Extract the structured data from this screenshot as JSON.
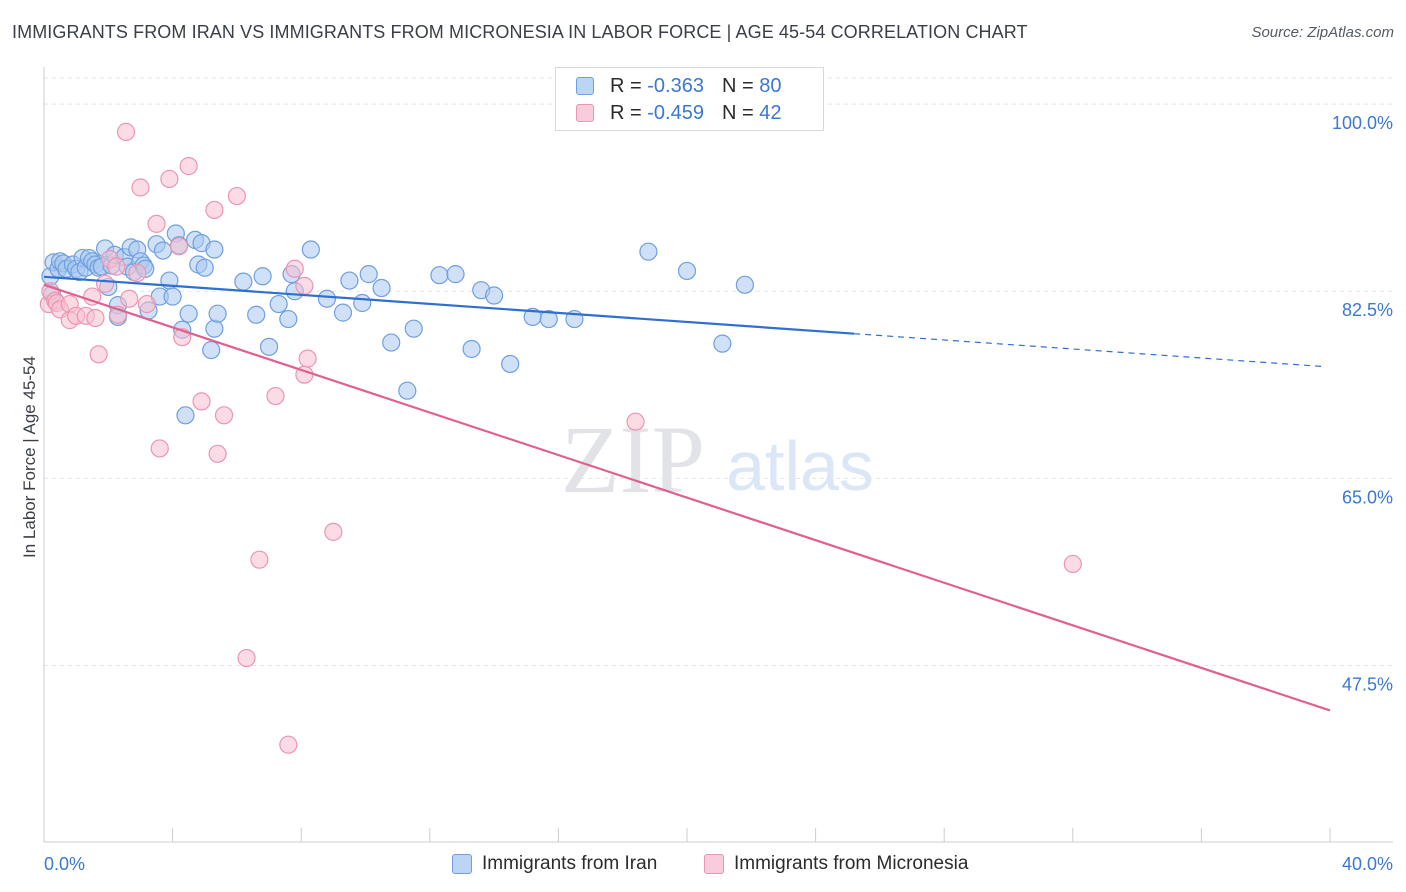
{
  "header": {
    "title": "IMMIGRANTS FROM IRAN VS IMMIGRANTS FROM MICRONESIA IN LABOR FORCE | AGE 45-54 CORRELATION CHART",
    "source": "Source: ZipAtlas.com"
  },
  "watermark": {
    "zip": "ZIP",
    "atlas": "atlas"
  },
  "legend": {
    "r_label": "R =",
    "n_label": "N =",
    "rows": [
      {
        "r": "-0.363",
        "n": "80"
      },
      {
        "r": "-0.459",
        "n": "42"
      }
    ]
  },
  "colors": {
    "iran_fill": "#aac8f0",
    "iran_stroke": "#6f9fe0",
    "iran_line": "#2f6fd0",
    "micronesia_fill": "#f7bfd0",
    "micronesia_stroke": "#ec95b2",
    "micronesia_line": "#e0608f",
    "axis_text": "#3a78d4",
    "grid": "#e3e5e8"
  },
  "chart_data": {
    "type": "scatter",
    "ylabel": "In Labor Force | Age 45-54",
    "x_tick_labels": [
      "0.0%",
      "40.0%"
    ],
    "y_tick_labels": [
      "100.0%",
      "82.5%",
      "65.0%",
      "47.5%"
    ],
    "y_ticks": [
      100.0,
      82.5,
      65.0,
      47.5
    ],
    "xlim": [
      0,
      40
    ],
    "ylim": [
      31,
      103
    ],
    "grid": true,
    "series": [
      {
        "name": "Immigrants from Iran",
        "color": "#6f9fe0",
        "points": [
          [
            0.2,
            83.9
          ],
          [
            0.25,
            82.2
          ],
          [
            0.3,
            85.2
          ],
          [
            0.45,
            84.6
          ],
          [
            0.5,
            85.3
          ],
          [
            0.6,
            85.1
          ],
          [
            0.7,
            84.6
          ],
          [
            0.9,
            85.0
          ],
          [
            1.0,
            84.6
          ],
          [
            1.1,
            84.3
          ],
          [
            1.2,
            85.6
          ],
          [
            1.3,
            84.7
          ],
          [
            1.4,
            85.6
          ],
          [
            1.5,
            85.3
          ],
          [
            1.6,
            85.0
          ],
          [
            1.7,
            84.7
          ],
          [
            1.8,
            84.8
          ],
          [
            1.9,
            86.5
          ],
          [
            2.0,
            82.9
          ],
          [
            2.1,
            84.9
          ],
          [
            2.2,
            85.9
          ],
          [
            2.3,
            81.2
          ],
          [
            2.3,
            80.1
          ],
          [
            2.5,
            85.7
          ],
          [
            2.6,
            84.8
          ],
          [
            2.7,
            86.6
          ],
          [
            2.8,
            84.3
          ],
          [
            2.9,
            86.4
          ],
          [
            3.0,
            85.3
          ],
          [
            3.1,
            84.9
          ],
          [
            3.15,
            84.6
          ],
          [
            3.25,
            80.7
          ],
          [
            3.5,
            86.9
          ],
          [
            3.6,
            82.0
          ],
          [
            3.7,
            86.3
          ],
          [
            3.9,
            83.5
          ],
          [
            4.0,
            82.0
          ],
          [
            4.1,
            87.9
          ],
          [
            4.2,
            86.8
          ],
          [
            4.3,
            78.9
          ],
          [
            4.4,
            70.9
          ],
          [
            4.5,
            80.4
          ],
          [
            4.7,
            87.3
          ],
          [
            4.8,
            85.0
          ],
          [
            4.9,
            87.0
          ],
          [
            5.0,
            84.7
          ],
          [
            5.2,
            77.0
          ],
          [
            5.3,
            86.4
          ],
          [
            5.3,
            79.0
          ],
          [
            5.4,
            80.4
          ],
          [
            6.2,
            83.4
          ],
          [
            6.6,
            80.3
          ],
          [
            6.8,
            83.9
          ],
          [
            7.0,
            77.3
          ],
          [
            7.3,
            81.3
          ],
          [
            7.6,
            79.9
          ],
          [
            7.7,
            84.1
          ],
          [
            7.8,
            82.5
          ],
          [
            8.3,
            86.4
          ],
          [
            8.8,
            81.8
          ],
          [
            9.3,
            80.5
          ],
          [
            9.5,
            83.5
          ],
          [
            9.9,
            81.4
          ],
          [
            10.1,
            84.1
          ],
          [
            10.5,
            82.8
          ],
          [
            10.8,
            77.7
          ],
          [
            11.3,
            73.2
          ],
          [
            11.5,
            79.0
          ],
          [
            12.3,
            84.0
          ],
          [
            12.8,
            84.1
          ],
          [
            13.3,
            77.1
          ],
          [
            13.6,
            82.6
          ],
          [
            14.0,
            82.1
          ],
          [
            14.5,
            75.7
          ],
          [
            15.2,
            80.1
          ],
          [
            15.7,
            79.9
          ],
          [
            16.5,
            79.9
          ],
          [
            18.8,
            86.2
          ],
          [
            20.0,
            84.4
          ],
          [
            21.1,
            77.6
          ],
          [
            21.8,
            83.1
          ]
        ],
        "trend": {
          "x": [
            0,
            25.2
          ],
          "y": [
            83.85,
            78.53
          ]
        },
        "trend_extension": {
          "x": [
            25.2,
            39.8
          ],
          "y": [
            78.53,
            75.46
          ]
        }
      },
      {
        "name": "Immigrants from Micronesia",
        "color": "#ec95b2",
        "points": [
          [
            0.15,
            81.3
          ],
          [
            0.2,
            82.5
          ],
          [
            0.35,
            81.6
          ],
          [
            0.4,
            81.4
          ],
          [
            0.5,
            80.8
          ],
          [
            0.8,
            81.3
          ],
          [
            0.8,
            79.8
          ],
          [
            1.0,
            80.2
          ],
          [
            1.3,
            80.2
          ],
          [
            1.5,
            82.0
          ],
          [
            1.6,
            80.0
          ],
          [
            1.7,
            76.6
          ],
          [
            1.9,
            83.2
          ],
          [
            2.05,
            85.5
          ],
          [
            2.25,
            84.8
          ],
          [
            2.3,
            80.3
          ],
          [
            2.55,
            97.4
          ],
          [
            2.65,
            81.8
          ],
          [
            2.9,
            84.2
          ],
          [
            3.0,
            92.2
          ],
          [
            3.2,
            81.3
          ],
          [
            3.5,
            88.8
          ],
          [
            3.6,
            67.8
          ],
          [
            3.9,
            93.0
          ],
          [
            4.2,
            86.7
          ],
          [
            4.3,
            78.2
          ],
          [
            4.5,
            94.2
          ],
          [
            4.9,
            72.2
          ],
          [
            5.3,
            90.1
          ],
          [
            5.4,
            67.3
          ],
          [
            5.6,
            70.9
          ],
          [
            6.0,
            91.4
          ],
          [
            6.3,
            48.2
          ],
          [
            6.7,
            57.4
          ],
          [
            7.2,
            72.7
          ],
          [
            7.6,
            40.1
          ],
          [
            7.8,
            84.6
          ],
          [
            8.1,
            83.0
          ],
          [
            8.1,
            74.7
          ],
          [
            8.2,
            76.2
          ],
          [
            9.0,
            60.0
          ],
          [
            18.4,
            70.3
          ],
          [
            32.0,
            57.0
          ]
        ],
        "trend": {
          "x": [
            0,
            40
          ],
          "y": [
            83.1,
            43.3
          ]
        }
      }
    ]
  },
  "bottom_legend": {
    "items": [
      {
        "label": "Immigrants from Iran"
      },
      {
        "label": "Immigrants from Micronesia"
      }
    ]
  }
}
